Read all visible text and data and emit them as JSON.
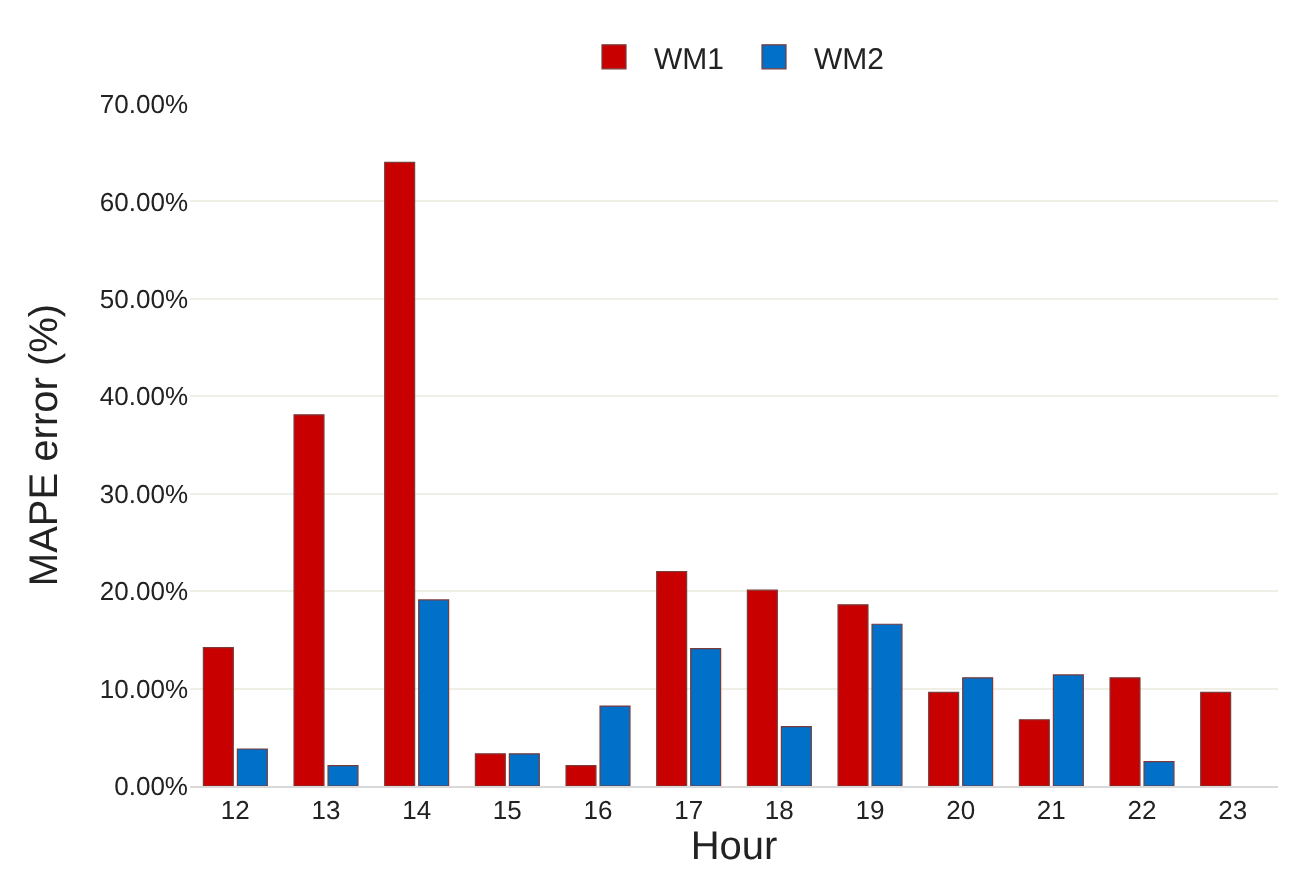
{
  "chart_data": {
    "type": "bar",
    "xlabel": "Hour",
    "ylabel": "MAPE error (%)",
    "categories": [
      "12",
      "13",
      "14",
      "15",
      "16",
      "17",
      "18",
      "19",
      "20",
      "21",
      "22",
      "23"
    ],
    "series": [
      {
        "name": "WM1",
        "color": "#c80000",
        "values": [
          14.2,
          38.1,
          64.0,
          3.3,
          2.1,
          22.0,
          20.1,
          18.6,
          9.6,
          6.8,
          11.1,
          9.6
        ]
      },
      {
        "name": "WM2",
        "color": "#0070c8",
        "values": [
          3.8,
          2.1,
          19.1,
          3.3,
          8.2,
          14.1,
          6.1,
          16.6,
          11.1,
          11.4,
          2.5,
          null
        ]
      }
    ],
    "ylim": [
      0,
      70
    ],
    "yticks": [
      {
        "value": 0,
        "label": "0.00%"
      },
      {
        "value": 10,
        "label": "10.00%"
      },
      {
        "value": 20,
        "label": "20.00%"
      },
      {
        "value": 30,
        "label": "30.00%"
      },
      {
        "value": 40,
        "label": "40.00%"
      },
      {
        "value": 50,
        "label": "50.00%"
      },
      {
        "value": 60,
        "label": "60.00%"
      },
      {
        "value": 70,
        "label": "70.00%"
      }
    ],
    "grid": "y",
    "legend": "top"
  }
}
